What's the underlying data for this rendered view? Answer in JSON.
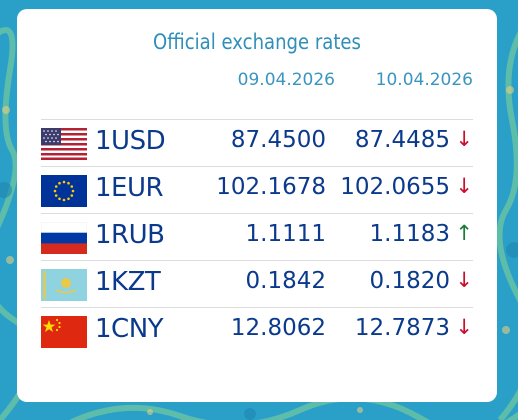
{
  "widget": {
    "title": "Official exchange rates",
    "dates": [
      "09.04.2026",
      "10.04.2026"
    ],
    "rows": [
      {
        "code": "1USD",
        "rate_prev": "87.4500",
        "rate_curr": "87.4485",
        "trend": "↓",
        "trend_dir": "down",
        "flag": "usa-flag-icon"
      },
      {
        "code": "1EUR",
        "rate_prev": "102.1678",
        "rate_curr": "102.0655",
        "trend": "↓",
        "trend_dir": "down",
        "flag": "eu-flag-icon"
      },
      {
        "code": "1RUB",
        "rate_prev": "1.1111",
        "rate_curr": "1.1183",
        "trend": "↑",
        "trend_dir": "up",
        "flag": "russia-flag-icon"
      },
      {
        "code": "1KZT",
        "rate_prev": "0.1842",
        "rate_curr": "0.1820",
        "trend": "↓",
        "trend_dir": "down",
        "flag": "kazakhstan-flag-icon"
      },
      {
        "code": "1CNY",
        "rate_prev": "12.8062",
        "rate_curr": "12.7873",
        "trend": "↓",
        "trend_dir": "down",
        "flag": "china-flag-icon"
      }
    ]
  },
  "colors": {
    "background": "#2aa0c8",
    "title": "#2f8fb8",
    "value_text": "#0b3a8c",
    "trend_down": "#c8102e",
    "trend_up": "#1a7a3a"
  }
}
